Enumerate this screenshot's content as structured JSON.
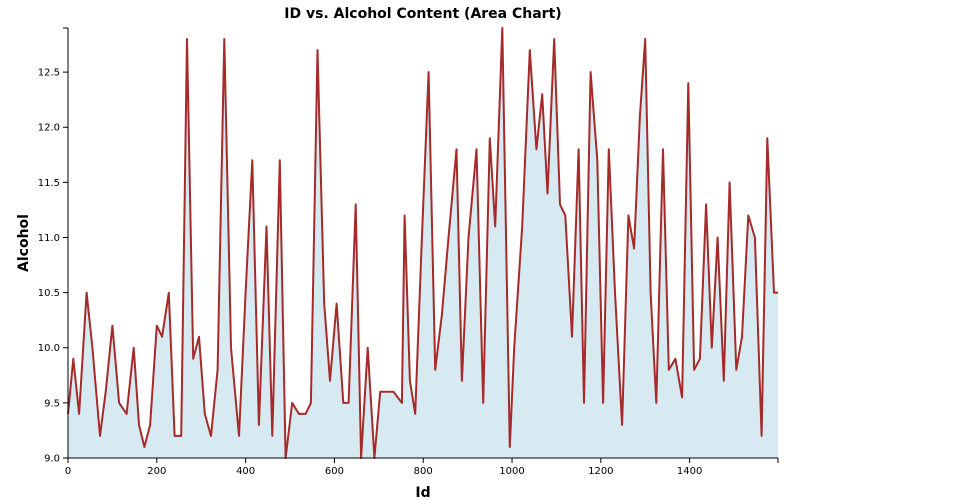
{
  "chart_data": {
    "type": "area",
    "title": "ID vs. Alcohol Content (Area Chart)",
    "xlabel": "Id",
    "ylabel": "Alcohol",
    "xlim": [
      0,
      1599
    ],
    "ylim": [
      9.0,
      12.9
    ],
    "grid": false,
    "xticks": [
      0,
      200,
      400,
      600,
      800,
      1000,
      1200,
      1400
    ],
    "yticks": [
      9.0,
      9.5,
      10.0,
      10.5,
      11.0,
      11.5,
      12.0,
      12.5
    ],
    "colors": {
      "line": "#a52a2a",
      "fill": "#d8eaf1"
    },
    "series": [
      {
        "x": [
          0,
          12,
          25,
          42,
          55,
          72,
          85,
          100,
          115,
          132,
          148,
          160,
          172,
          185,
          200,
          212,
          227,
          240,
          255,
          268,
          282,
          295,
          308,
          322,
          337,
          352,
          367,
          385,
          400,
          415,
          430,
          447,
          460,
          477,
          490,
          505,
          520,
          535,
          547,
          562,
          577,
          590,
          605,
          620,
          632,
          648,
          660,
          675,
          690,
          703,
          718,
          733,
          752,
          758,
          770,
          782,
          797,
          812,
          827,
          842,
          857,
          875,
          887,
          902,
          920,
          935,
          950,
          962,
          978,
          995,
          1005,
          1023,
          1040,
          1055,
          1068,
          1080,
          1095,
          1108,
          1120,
          1135,
          1150,
          1162,
          1177,
          1192,
          1205,
          1218,
          1232,
          1248,
          1262,
          1275,
          1288,
          1300,
          1312,
          1325,
          1340,
          1353,
          1368,
          1383,
          1397,
          1410,
          1423,
          1437,
          1450,
          1463,
          1477,
          1490,
          1505,
          1518,
          1532,
          1547,
          1562,
          1575,
          1590,
          1599
        ],
        "y": [
          9.4,
          9.9,
          9.4,
          10.5,
          10.0,
          9.2,
          9.6,
          10.2,
          9.5,
          9.4,
          10.0,
          9.3,
          9.1,
          9.3,
          10.2,
          10.1,
          10.5,
          9.2,
          9.2,
          12.8,
          9.9,
          10.1,
          9.4,
          9.2,
          9.8,
          12.8,
          10.0,
          9.2,
          10.5,
          11.7,
          9.3,
          11.1,
          9.2,
          11.7,
          9.0,
          9.5,
          9.4,
          9.4,
          9.5,
          12.7,
          10.4,
          9.7,
          10.4,
          9.5,
          9.5,
          11.3,
          9.0,
          10.0,
          9.0,
          9.6,
          9.6,
          9.6,
          9.5,
          11.2,
          9.7,
          9.4,
          11.0,
          12.5,
          9.8,
          10.3,
          11.0,
          11.8,
          9.7,
          11.0,
          11.8,
          9.5,
          11.9,
          11.1,
          12.9,
          9.1,
          10.0,
          11.1,
          12.7,
          11.8,
          12.3,
          11.4,
          12.8,
          11.3,
          11.2,
          10.1,
          11.8,
          9.5,
          12.5,
          11.7,
          9.5,
          11.8,
          10.5,
          9.3,
          11.2,
          10.9,
          12.1,
          12.8,
          10.5,
          9.5,
          11.8,
          9.8,
          9.9,
          9.55,
          12.4,
          9.8,
          9.9,
          11.3,
          10.0,
          11.0,
          9.7,
          11.5,
          9.8,
          10.1,
          11.2,
          11.0,
          9.2,
          11.9,
          10.5,
          10.5
        ]
      }
    ]
  }
}
